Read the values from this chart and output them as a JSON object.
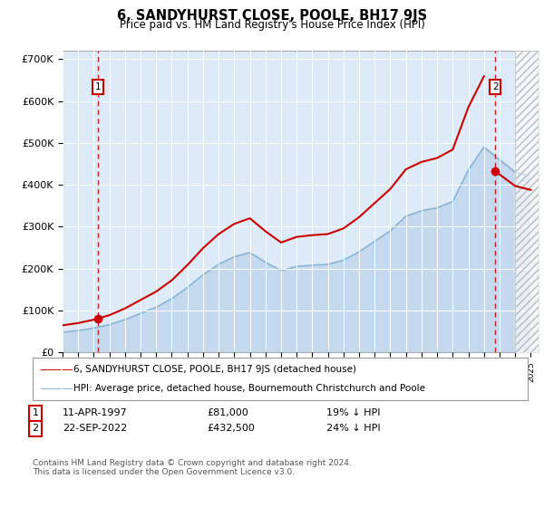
{
  "title": "6, SANDYHURST CLOSE, POOLE, BH17 9JS",
  "subtitle": "Price paid vs. HM Land Registry's House Price Index (HPI)",
  "hpi_years": [
    1995,
    1996,
    1997,
    1998,
    1999,
    2000,
    2001,
    2002,
    2003,
    2004,
    2005,
    2006,
    2007,
    2008,
    2009,
    2010,
    2011,
    2012,
    2013,
    2014,
    2015,
    2016,
    2017,
    2018,
    2019,
    2020,
    2021,
    2022,
    2023,
    2024,
    2025
  ],
  "hpi_values": [
    48000,
    52000,
    58000,
    66000,
    78000,
    93000,
    108000,
    128000,
    155000,
    185000,
    210000,
    228000,
    238000,
    215000,
    195000,
    205000,
    208000,
    210000,
    220000,
    240000,
    265000,
    290000,
    325000,
    338000,
    345000,
    360000,
    435000,
    490000,
    460000,
    430000,
    420000
  ],
  "sale_dates": [
    1997.28,
    2022.72
  ],
  "sale_prices": [
    81000,
    432500
  ],
  "sale_color": "#cc0000",
  "hpi_fill_color": "#c5d9ee",
  "hpi_line_color": "#8ab4d4",
  "marker_color": "#cc0000",
  "vline_color": "#cc0000",
  "bg_color": "#ddeaf7",
  "ylim": [
    0,
    720000
  ],
  "yticks": [
    0,
    100000,
    200000,
    300000,
    400000,
    500000,
    600000,
    700000
  ],
  "ytick_labels": [
    "£0",
    "£100K",
    "£200K",
    "£300K",
    "£400K",
    "£500K",
    "£600K",
    "£700K"
  ],
  "xmin": 1995,
  "xmax": 2025.5,
  "legend_property_label": "6, SANDYHURST CLOSE, POOLE, BH17 9JS (detached house)",
  "legend_hpi_label": "HPI: Average price, detached house, Bournemouth Christchurch and Poole",
  "annotation1_num": "1",
  "annotation1_date": "11-APR-1997",
  "annotation1_price": "£81,000",
  "annotation1_pct": "19% ↓ HPI",
  "annotation2_num": "2",
  "annotation2_date": "22-SEP-2022",
  "annotation2_price": "£432,500",
  "annotation2_pct": "24% ↓ HPI",
  "footnote": "Contains HM Land Registry data © Crown copyright and database right 2024.\nThis data is licensed under the Open Government Licence v3.0.",
  "hatched_region_start": 2024.0,
  "hatched_region_end": 2025.5
}
